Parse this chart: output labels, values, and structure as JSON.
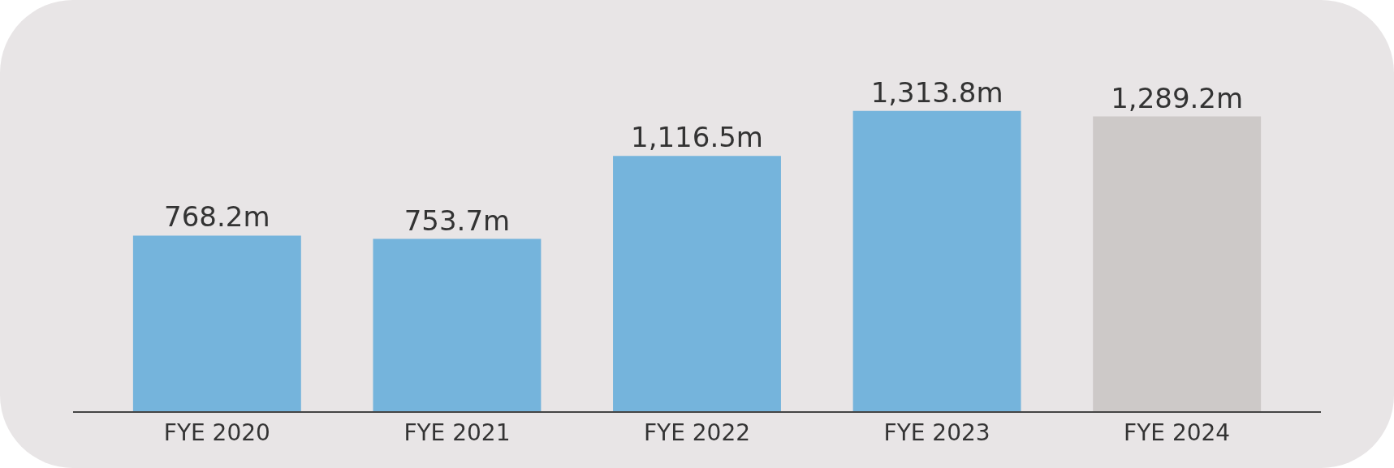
{
  "chart_data": {
    "type": "bar",
    "categories": [
      "FYE 2020",
      "FYE 2021",
      "FYE 2022",
      "FYE 2023",
      "FYE 2024"
    ],
    "values": [
      768.2,
      753.7,
      1116.5,
      1313.8,
      1289.2
    ],
    "value_labels": [
      "768.2m",
      "753.7m",
      "1,116.5m",
      "1,313.8m",
      "1,289.2m"
    ],
    "colors": [
      "#75b4dc",
      "#75b4dc",
      "#75b4dc",
      "#75b4dc",
      "#cdc9c8"
    ],
    "legend": false,
    "tick_labels": "x"
  }
}
